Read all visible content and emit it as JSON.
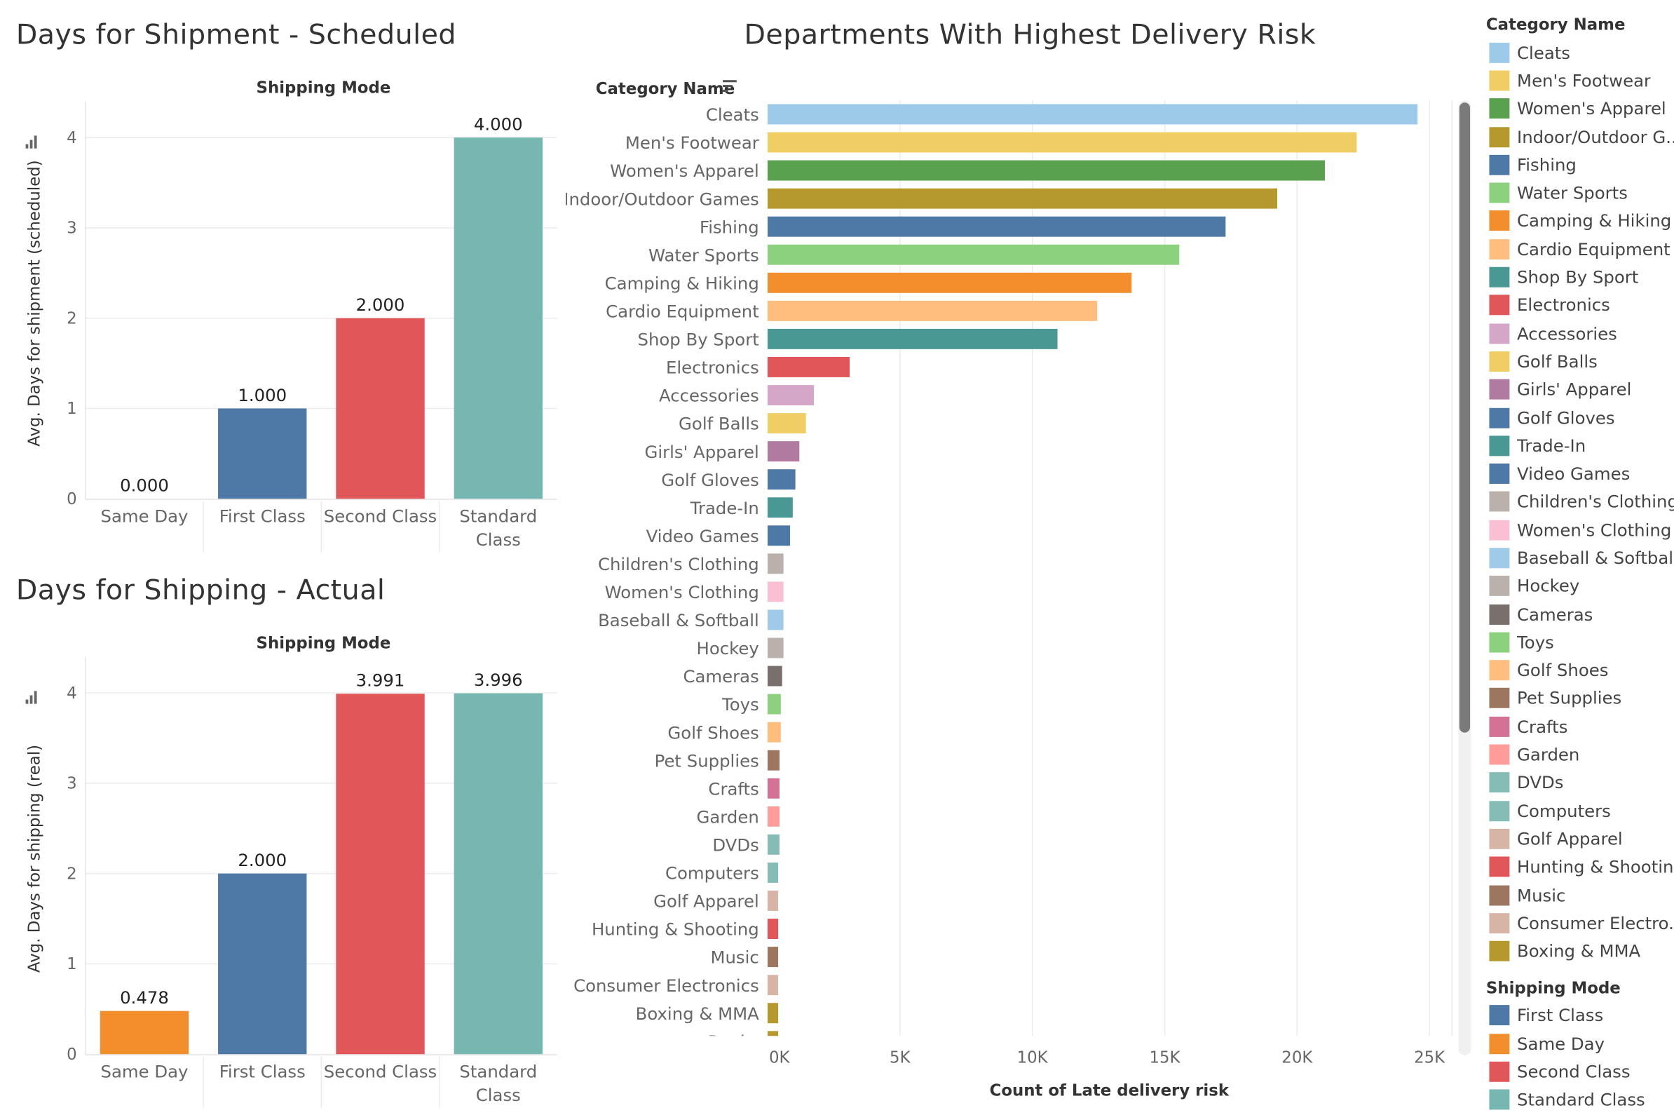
{
  "colors": {
    "Cleats": "#9ecae9",
    "Men's Footwear": "#f1ce63",
    "Women's Apparel": "#59a14f",
    "Indoor/Outdoor Games": "#b6992d",
    "Fishing": "#4e79a7",
    "Water Sports": "#8cd17d",
    "Camping & Hiking": "#f28e2b",
    "Cardio Equipment": "#ffbe7d",
    "Shop By Sport": "#499894",
    "Electronics": "#e15759",
    "Accessories": "#d4a6c8",
    "Golf Balls": "#f1ce63",
    "Girls' Apparel": "#b07aa1",
    "Golf Gloves": "#4e79a7",
    "Trade-In": "#499894",
    "Video Games": "#4e79a7",
    "Children's Clothing": "#bab0ac",
    "Women's Clothing": "#fabfd2",
    "Baseball & Softball": "#a0cbe8",
    "Hockey": "#bab0ac",
    "Cameras": "#79706e",
    "Toys": "#8cd17d",
    "Golf Shoes": "#ffbe7d",
    "Pet Supplies": "#9d7660",
    "Crafts": "#d37295",
    "Garden": "#ff9d9a",
    "DVDs": "#86bcb6",
    "Computers": "#86bcb6",
    "Golf Apparel": "#d7b5a6",
    "Hunting & Shooting": "#e15759",
    "Music": "#9d7660",
    "Consumer Electronics": "#d7b5a6",
    "Boxing & MMA": "#b6992d",
    "Books": "#b6992d",
    "First Class": "#4e79a7",
    "Same Day": "#f28e2b",
    "Second Class": "#e15759",
    "Standard Class": "#76b7b2"
  },
  "chart_data": [
    {
      "type": "bar",
      "title": "Days for Shipment - Scheduled",
      "column_header": "Shipping Mode",
      "categories": [
        "Same Day",
        "First Class",
        "Second Class",
        "Standard Class"
      ],
      "category_labels": [
        [
          "Same Day"
        ],
        [
          "First Class"
        ],
        [
          "Second Class"
        ],
        [
          "Standard",
          "Class"
        ]
      ],
      "values": [
        0,
        1,
        2,
        4
      ],
      "data_labels": [
        "0.000",
        "1.000",
        "2.000",
        "4.000"
      ],
      "ylabel": "Avg. Days for shipment (scheduled)",
      "ylim": [
        0,
        4.4
      ],
      "yticks": [
        0,
        1,
        2,
        3,
        4
      ],
      "grid": true
    },
    {
      "type": "bar",
      "title": "Days for Shipping - Actual",
      "column_header": "Shipping Mode",
      "categories": [
        "Same Day",
        "First Class",
        "Second Class",
        "Standard Class"
      ],
      "category_labels": [
        [
          "Same Day"
        ],
        [
          "First Class"
        ],
        [
          "Second Class"
        ],
        [
          "Standard",
          "Class"
        ]
      ],
      "values": [
        0.478,
        2,
        3.991,
        3.996
      ],
      "data_labels": [
        "0.478",
        "2.000",
        "3.991",
        "3.996"
      ],
      "ylabel": "Avg. Days for shipping (real)",
      "ylim": [
        0,
        4.4
      ],
      "yticks": [
        0,
        1,
        2,
        3,
        4
      ],
      "grid": true
    },
    {
      "type": "bar",
      "orientation": "horizontal",
      "title": "Departments With Highest Delivery Risk",
      "row_header": "Category Name",
      "categories": [
        "Cleats",
        "Men's Footwear",
        "Women's Apparel",
        "Indoor/Outdoor Games",
        "Fishing",
        "Water Sports",
        "Camping & Hiking",
        "Cardio Equipment",
        "Shop By Sport",
        "Electronics",
        "Accessories",
        "Golf Balls",
        "Girls' Apparel",
        "Golf Gloves",
        "Trade-In",
        "Video Games",
        "Children's Clothing",
        "Women's Clothing",
        "Baseball & Softball",
        "Hockey",
        "Cameras",
        "Toys",
        "Golf Shoes",
        "Pet Supplies",
        "Crafts",
        "Garden",
        "DVDs",
        "Computers",
        "Golf Apparel",
        "Hunting & Shooting",
        "Music",
        "Consumer Electronics",
        "Boxing & MMA",
        "Books"
      ],
      "values": [
        24550,
        22250,
        21050,
        19250,
        17300,
        15550,
        13750,
        12450,
        10950,
        3100,
        1750,
        1450,
        1200,
        1050,
        950,
        850,
        600,
        600,
        600,
        600,
        550,
        500,
        500,
        450,
        450,
        450,
        450,
        400,
        400,
        400,
        400,
        400,
        400,
        400
      ],
      "xlabel": "Count of Late delivery risk",
      "xlim": [
        0,
        26000
      ],
      "xticks": [
        0,
        5000,
        10000,
        15000,
        20000,
        25000
      ],
      "xtick_labels": [
        "0K",
        "5K",
        "10K",
        "15K",
        "20K",
        "25K"
      ],
      "grid": true
    }
  ],
  "legend": {
    "category_title": "Category Name",
    "category_items": [
      "Cleats",
      "Men's Footwear",
      "Women's Apparel",
      "Indoor/Outdoor G..",
      "Fishing",
      "Water Sports",
      "Camping & Hiking",
      "Cardio Equipment",
      "Shop By Sport",
      "Electronics",
      "Accessories",
      "Golf Balls",
      "Girls' Apparel",
      "Golf Gloves",
      "Trade-In",
      "Video Games",
      "Children's Clothing",
      "Women's Clothing",
      "Baseball & Softball",
      "Hockey",
      "Cameras",
      "Toys",
      "Golf Shoes",
      "Pet Supplies",
      "Crafts",
      "Garden",
      "DVDs",
      "Computers",
      "Golf Apparel",
      "Hunting & Shooting",
      "Music",
      "Consumer Electro..",
      "Boxing & MMA"
    ],
    "category_color_keys": [
      "Cleats",
      "Men's Footwear",
      "Women's Apparel",
      "Indoor/Outdoor Games",
      "Fishing",
      "Water Sports",
      "Camping & Hiking",
      "Cardio Equipment",
      "Shop By Sport",
      "Electronics",
      "Accessories",
      "Golf Balls",
      "Girls' Apparel",
      "Golf Gloves",
      "Trade-In",
      "Video Games",
      "Children's Clothing",
      "Women's Clothing",
      "Baseball & Softball",
      "Hockey",
      "Cameras",
      "Toys",
      "Golf Shoes",
      "Pet Supplies",
      "Crafts",
      "Garden",
      "DVDs",
      "Computers",
      "Golf Apparel",
      "Hunting & Shooting",
      "Music",
      "Consumer Electronics",
      "Boxing & MMA"
    ],
    "mode_title": "Shipping Mode",
    "mode_items": [
      "First Class",
      "Same Day",
      "Second Class",
      "Standard Class"
    ]
  },
  "icons": {
    "axis_sort": "bar-chart-icon",
    "header_sort": "sort-descending-icon"
  }
}
